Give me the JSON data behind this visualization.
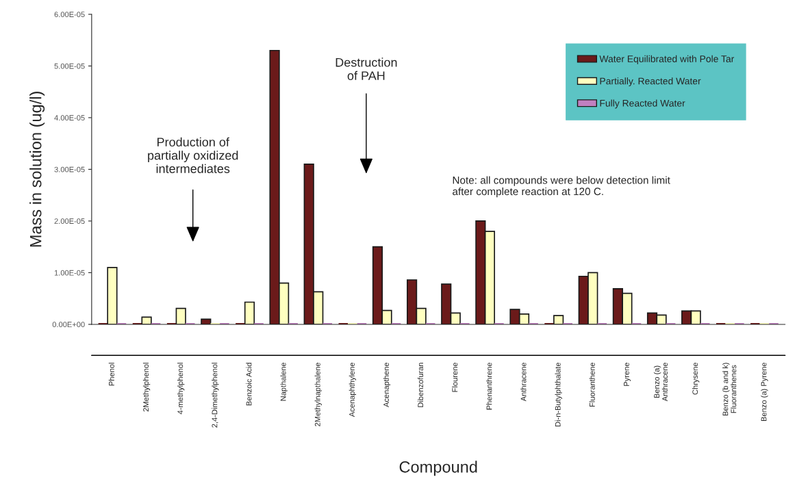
{
  "chart_data": {
    "type": "bar",
    "ylabel": "Mass in solution (ug/l)",
    "xlabel": "Compound",
    "categories": [
      "Phenol",
      "2Methylphenol",
      "4-methylphenol",
      "2,4-Dimethylphenol",
      "Benzoic Acid",
      "Napthalene",
      "2Methylnapthalene",
      "Acenaphthylene",
      "Acenapthene",
      "Dibenzofuran",
      "Flourene",
      "Phenanthrene",
      "Anthracene",
      "Di-n-Butylphthalate",
      "Fluoranthene",
      "Pyrene",
      "Benzo (a)\nAnthracene",
      "Chrysene",
      "Benzo (b and k)\nFluoranthenes",
      "Benzo (a) Pyrene"
    ],
    "series": [
      {
        "name": "Water Equilibrated with Pole Tar",
        "color": "#6b1a1a",
        "values": [
          0,
          0,
          0,
          1e-06,
          0,
          5.3e-05,
          3.1e-05,
          0,
          1.5e-05,
          8.6e-06,
          7.8e-06,
          2e-05,
          2.9e-06,
          0,
          9.3e-06,
          6.9e-06,
          2.2e-06,
          2.6e-06,
          0,
          0
        ]
      },
      {
        "name": "Partially. Reacted Water",
        "color": "#ffffc0",
        "values": [
          1.1e-05,
          1.4e-06,
          3.1e-06,
          0,
          4.3e-06,
          8e-06,
          6.3e-06,
          0,
          2.7e-06,
          3.1e-06,
          2.2e-06,
          1.8e-05,
          2e-06,
          1.7e-06,
          1e-05,
          6e-06,
          1.8e-06,
          2.6e-06,
          0,
          0
        ]
      },
      {
        "name": "Fully Reacted Water",
        "color": "#c080c0",
        "values": [
          0,
          0,
          0,
          0,
          0,
          0,
          0,
          0,
          0,
          0,
          0,
          0,
          0,
          0,
          0,
          0,
          0,
          0,
          0,
          0
        ]
      }
    ],
    "ylim": [
      0,
      6e-05
    ],
    "yticks": [
      {
        "value": 0,
        "label": "0.00E+00"
      },
      {
        "value": 1e-05,
        "label": "1.00E-05"
      },
      {
        "value": 2e-05,
        "label": "2.00E-05"
      },
      {
        "value": 3e-05,
        "label": "3.00E-05"
      },
      {
        "value": 4e-05,
        "label": "4.00E-05"
      },
      {
        "value": 5e-05,
        "label": "5.00E-05"
      },
      {
        "value": 6e-05,
        "label": "6.00E-05"
      }
    ],
    "annotations": [
      "Production of\npartially oxidized\nintermediates",
      "Destruction\nof PAH",
      "Note: all compounds were below detection limit\nafter complete reaction at 120 C."
    ],
    "legend": "top right",
    "grid": false
  }
}
